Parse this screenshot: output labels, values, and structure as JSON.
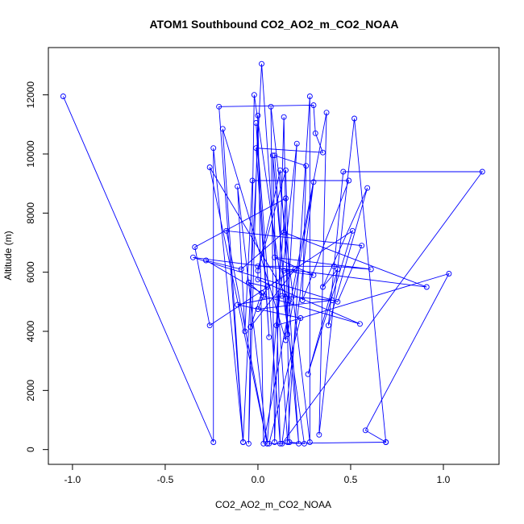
{
  "chart_data": {
    "type": "line",
    "title": "ATOM1 Southbound CO2_AO2_m_CO2_NOAA",
    "xlabel": "CO2_AO2_m_CO2_NOAA",
    "ylabel": "Altitude (m)",
    "xlim": [
      -1.13,
      1.3
    ],
    "ylim": [
      -500,
      13600
    ],
    "x_ticks": [
      -1.0,
      -0.5,
      0.0,
      0.5,
      1.0
    ],
    "x_tick_labels": [
      "-1.0",
      "-0.5",
      "0.0",
      "0.5",
      "1.0"
    ],
    "y_ticks": [
      0,
      2000,
      4000,
      6000,
      8000,
      10000,
      12000
    ],
    "y_tick_labels": [
      "0",
      "2000",
      "4000",
      "6000",
      "8000",
      "10000",
      "12000"
    ],
    "grid": false,
    "series": [
      {
        "color": "#0000ff",
        "marker": "open-circle",
        "points": [
          [
            -1.05,
            11950
          ],
          [
            -0.24,
            250
          ],
          [
            -0.24,
            10200
          ],
          [
            -0.08,
            250
          ],
          [
            0.02,
            13050
          ],
          [
            0.16,
            250
          ],
          [
            0.28,
            11950
          ],
          [
            0.28,
            250
          ],
          [
            0.07,
            11600
          ],
          [
            0.09,
            250
          ],
          [
            0.14,
            11250
          ],
          [
            0.17,
            250
          ],
          [
            0.25,
            200
          ],
          [
            -0.02,
            12000
          ],
          [
            -0.05,
            200
          ],
          [
            0.0,
            11300
          ],
          [
            0.03,
            200
          ],
          [
            0.37,
            11400
          ],
          [
            0.33,
            500
          ],
          [
            0.52,
            11200
          ],
          [
            0.69,
            250
          ],
          [
            0.58,
            650
          ],
          [
            1.03,
            5950
          ],
          [
            0.1,
            4200
          ],
          [
            0.21,
            10350
          ],
          [
            0.15,
            3700
          ],
          [
            -0.19,
            10850
          ],
          [
            -0.08,
            250
          ],
          [
            -0.21,
            11600
          ],
          [
            0.3,
            11650
          ],
          [
            0.31,
            10700
          ],
          [
            0.35,
            10050
          ],
          [
            -0.01,
            10200
          ],
          [
            0.06,
            3800
          ],
          [
            -0.01,
            11050
          ],
          [
            0.12,
            200
          ],
          [
            0.08,
            9950
          ],
          [
            0.22,
            200
          ],
          [
            0.12,
            9450
          ],
          [
            0.0,
            6050
          ],
          [
            0.15,
            9450
          ],
          [
            0.17,
            5050
          ],
          [
            -0.26,
            9550
          ],
          [
            0.05,
            200
          ],
          [
            -0.11,
            8900
          ],
          [
            -0.07,
            4000
          ],
          [
            -0.03,
            9100
          ],
          [
            0.49,
            9100
          ],
          [
            0.24,
            5050
          ],
          [
            0.26,
            9600
          ],
          [
            0.09,
            9950
          ],
          [
            0.16,
            3900
          ],
          [
            0.3,
            9050
          ],
          [
            0.13,
            200
          ],
          [
            1.21,
            9400
          ],
          [
            0.46,
            9400
          ],
          [
            0.38,
            4200
          ],
          [
            0.59,
            8850
          ],
          [
            0.35,
            5500
          ],
          [
            0.43,
            6100
          ],
          [
            0.27,
            2550
          ],
          [
            0.51,
            7400
          ],
          [
            -0.26,
            4200
          ],
          [
            -0.34,
            6850
          ],
          [
            0.15,
            8500
          ],
          [
            0.05,
            200
          ],
          [
            -0.17,
            7400
          ],
          [
            0.56,
            6900
          ],
          [
            0.43,
            5000
          ],
          [
            -0.35,
            6500
          ],
          [
            0.91,
            5500
          ],
          [
            0.14,
            7350
          ],
          [
            -0.09,
            6100
          ],
          [
            -0.28,
            6400
          ],
          [
            0.02,
            5300
          ],
          [
            -0.04,
            4150
          ],
          [
            0.2,
            6100
          ],
          [
            0.14,
            6050
          ],
          [
            0.3,
            5900
          ],
          [
            0.09,
            6500
          ],
          [
            0.61,
            6100
          ],
          [
            0.41,
            6200
          ],
          [
            0.0,
            6200
          ],
          [
            0.0,
            5750
          ],
          [
            0.55,
            4250
          ],
          [
            0.03,
            5200
          ],
          [
            -0.05,
            5650
          ],
          [
            0.05,
            5500
          ],
          [
            0.0,
            4750
          ],
          [
            0.4,
            5050
          ],
          [
            0.13,
            5200
          ],
          [
            -0.11,
            4900
          ],
          [
            0.23,
            4450
          ],
          [
            0.06,
            200
          ],
          [
            0.69,
            250
          ]
        ]
      }
    ]
  }
}
